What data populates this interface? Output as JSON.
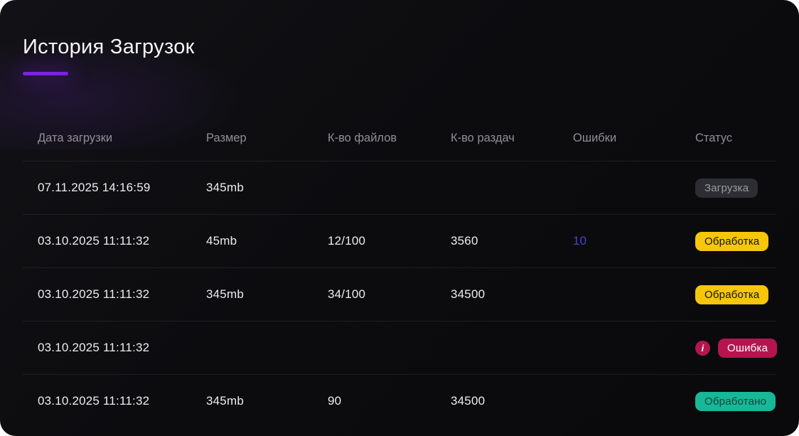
{
  "page": {
    "title": "История Загрузок"
  },
  "colors": {
    "accent": "#7c22e0",
    "link": "#4a42cf",
    "badge_loading_bg": "#2d2d33",
    "badge_loading_text": "#9a9aa2",
    "badge_processing_bg": "#f5c60a",
    "badge_processing_text": "#151400",
    "badge_error_bg": "#b5154e",
    "badge_error_text": "#ffffff",
    "badge_done_bg": "#17b897",
    "badge_done_text": "#164439"
  },
  "table": {
    "columns": [
      {
        "key": "date",
        "label": "Дата загрузки"
      },
      {
        "key": "size",
        "label": "Размер"
      },
      {
        "key": "files",
        "label": "К-во файлов"
      },
      {
        "key": "seeds",
        "label": "К-во раздач"
      },
      {
        "key": "errors",
        "label": "Ошибки"
      },
      {
        "key": "status",
        "label": "Статус"
      }
    ],
    "rows": [
      {
        "date": "07.11.2025 14:16:59",
        "size": "345mb",
        "files": "",
        "seeds": "",
        "errors": "",
        "status": {
          "label": "Загрузка",
          "type": "loading"
        }
      },
      {
        "date": "03.10.2025 11:11:32",
        "size": "45mb",
        "files": "12/100",
        "seeds": "3560",
        "errors": "10",
        "status": {
          "label": "Обработка",
          "type": "processing"
        }
      },
      {
        "date": "03.10.2025 11:11:32",
        "size": "345mb",
        "files": "34/100",
        "seeds": "34500",
        "errors": "",
        "status": {
          "label": "Обработка",
          "type": "processing"
        }
      },
      {
        "date": "03.10.2025 11:11:32",
        "size": "",
        "files": "",
        "seeds": "",
        "errors": "",
        "status": {
          "label": "Ошибка",
          "type": "error",
          "icon": "info-icon"
        }
      },
      {
        "date": "03.10.2025 11:11:32",
        "size": "345mb",
        "files": "90",
        "seeds": "34500",
        "errors": "",
        "status": {
          "label": "Обработано",
          "type": "done"
        }
      }
    ]
  }
}
